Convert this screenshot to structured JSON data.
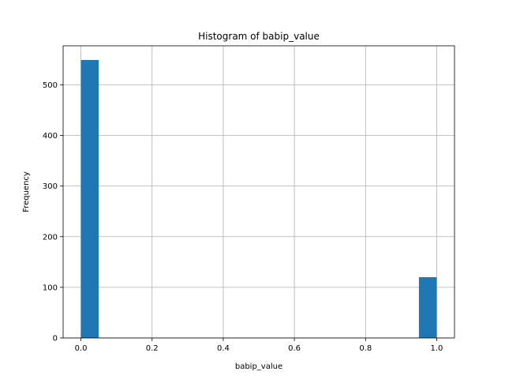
{
  "chart_data": {
    "type": "bar",
    "title": "Histogram of babip_value",
    "xlabel": "babip_value",
    "ylabel": "Frequency",
    "xlim": [
      -0.05,
      1.05
    ],
    "ylim": [
      0,
      577
    ],
    "xticks": [
      0.0,
      0.2,
      0.4,
      0.6,
      0.8,
      1.0
    ],
    "xtick_labels": [
      "0.0",
      "0.2",
      "0.4",
      "0.6",
      "0.8",
      "1.0"
    ],
    "yticks": [
      0,
      100,
      200,
      300,
      400,
      500
    ],
    "ytick_labels": [
      "0",
      "100",
      "200",
      "300",
      "400",
      "500"
    ],
    "grid": true,
    "bar_color": "#1f77b4",
    "bins": [
      {
        "x0": 0.0,
        "x1": 0.05,
        "count": 549
      },
      {
        "x0": 0.95,
        "x1": 1.0,
        "count": 120
      }
    ]
  }
}
